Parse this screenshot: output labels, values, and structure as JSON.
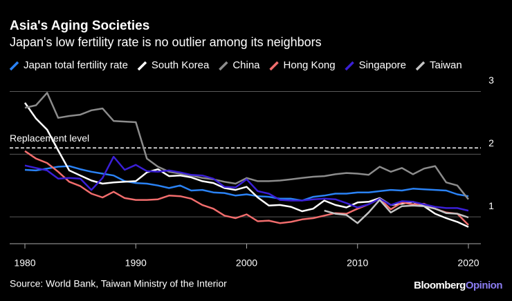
{
  "chart_data": {
    "type": "line",
    "title": "Asia's Aging Societies",
    "subtitle": "Japan's low fertility rate is no outlier among its neighbors",
    "source": "Source: World Bank, Taiwan Ministry of the Interior",
    "branding": [
      "Bloomberg",
      "Opinion"
    ],
    "x": [
      1980,
      1981,
      1982,
      1983,
      1984,
      1985,
      1986,
      1987,
      1988,
      1989,
      1990,
      1991,
      1992,
      1993,
      1994,
      1995,
      1996,
      1997,
      1998,
      1999,
      2000,
      2001,
      2002,
      2003,
      2004,
      2005,
      2006,
      2007,
      2008,
      2009,
      2010,
      2011,
      2012,
      2013,
      2014,
      2015,
      2016,
      2017,
      2018,
      2019,
      2020
    ],
    "xlim": [
      1980,
      2020
    ],
    "xticks": [
      1980,
      1990,
      2000,
      2010,
      2020
    ],
    "ylim": [
      0.55,
      3.05
    ],
    "yticks": [
      1,
      2,
      3
    ],
    "grid": true,
    "reference_line": {
      "value": 2.1,
      "label": "Replacement level"
    },
    "series": [
      {
        "name": "Japan total fertility rate",
        "color": "#2a82f5",
        "values": [
          1.75,
          1.74,
          1.77,
          1.8,
          1.81,
          1.76,
          1.72,
          1.69,
          1.66,
          1.57,
          1.54,
          1.53,
          1.5,
          1.46,
          1.5,
          1.42,
          1.43,
          1.39,
          1.38,
          1.34,
          1.36,
          1.33,
          1.32,
          1.29,
          1.29,
          1.26,
          1.32,
          1.34,
          1.37,
          1.37,
          1.39,
          1.39,
          1.41,
          1.43,
          1.42,
          1.45,
          1.44,
          1.43,
          1.42,
          1.36,
          1.33
        ]
      },
      {
        "name": "South Korea",
        "color": "#ffffff",
        "values": [
          2.82,
          2.57,
          2.39,
          2.06,
          1.74,
          1.66,
          1.58,
          1.53,
          1.55,
          1.56,
          1.57,
          1.71,
          1.76,
          1.65,
          1.66,
          1.63,
          1.57,
          1.54,
          1.46,
          1.43,
          1.48,
          1.31,
          1.18,
          1.19,
          1.16,
          1.09,
          1.13,
          1.26,
          1.19,
          1.15,
          1.23,
          1.24,
          1.3,
          1.19,
          1.21,
          1.24,
          1.17,
          1.05,
          0.98,
          0.92,
          0.84
        ]
      },
      {
        "name": "China",
        "color": "#8c8c8c",
        "values": [
          2.74,
          2.78,
          2.98,
          2.58,
          2.61,
          2.63,
          2.7,
          2.73,
          2.53,
          2.52,
          2.51,
          1.93,
          1.8,
          1.72,
          1.69,
          1.66,
          1.62,
          1.6,
          1.56,
          1.53,
          1.62,
          1.57,
          1.57,
          1.58,
          1.6,
          1.62,
          1.64,
          1.65,
          1.68,
          1.7,
          1.69,
          1.67,
          1.8,
          1.72,
          1.78,
          1.68,
          1.77,
          1.81,
          1.55,
          1.5,
          1.28
        ]
      },
      {
        "name": "Hong Kong",
        "color": "#f26d6d",
        "values": [
          2.05,
          1.93,
          1.86,
          1.72,
          1.56,
          1.49,
          1.37,
          1.31,
          1.4,
          1.3,
          1.27,
          1.27,
          1.28,
          1.34,
          1.33,
          1.29,
          1.19,
          1.13,
          1.02,
          0.98,
          1.04,
          0.93,
          0.94,
          0.9,
          0.92,
          0.96,
          0.98,
          1.02,
          1.06,
          1.05,
          1.13,
          1.2,
          1.29,
          1.12,
          1.23,
          1.2,
          1.21,
          1.13,
          1.07,
          1.05,
          0.87
        ]
      },
      {
        "name": "Singapore",
        "color": "#3a1fd6",
        "values": [
          1.82,
          1.78,
          1.74,
          1.61,
          1.62,
          1.61,
          1.43,
          1.62,
          1.96,
          1.75,
          1.83,
          1.73,
          1.72,
          1.74,
          1.71,
          1.67,
          1.66,
          1.61,
          1.48,
          1.47,
          1.6,
          1.41,
          1.37,
          1.27,
          1.26,
          1.26,
          1.28,
          1.29,
          1.28,
          1.22,
          1.15,
          1.2,
          1.29,
          1.19,
          1.25,
          1.24,
          1.2,
          1.16,
          1.14,
          1.14,
          1.1
        ]
      },
      {
        "name": "Taiwan",
        "color": "#c4c4c4",
        "values": [
          null,
          null,
          null,
          null,
          null,
          null,
          null,
          null,
          null,
          null,
          null,
          null,
          null,
          null,
          null,
          null,
          null,
          null,
          null,
          null,
          null,
          null,
          null,
          null,
          null,
          null,
          null,
          1.1,
          1.05,
          1.03,
          0.9,
          1.07,
          1.27,
          1.07,
          1.17,
          1.18,
          1.17,
          1.13,
          1.06,
          1.05,
          0.99
        ]
      }
    ]
  }
}
